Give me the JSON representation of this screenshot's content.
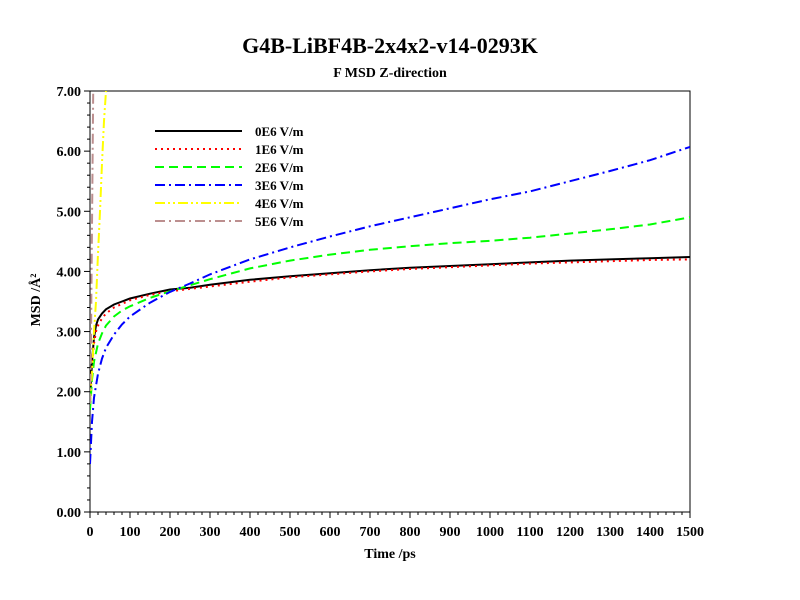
{
  "chart_data": {
    "type": "line",
    "title": "G4B-LiBF4B-2x4x2-v14-0293K",
    "subtitle": "F MSD Z-direction",
    "xlabel": "Time /ps",
    "ylabel": "MSD /Å²",
    "xlim": [
      0,
      1500
    ],
    "ylim": [
      0,
      7
    ],
    "x_ticks": [
      "0",
      "100",
      "200",
      "300",
      "400",
      "500",
      "600",
      "700",
      "800",
      "900",
      "1000",
      "1100",
      "1200",
      "1300",
      "1400",
      "1500"
    ],
    "y_ticks": [
      "0.00",
      "1.00",
      "2.00",
      "3.00",
      "4.00",
      "5.00",
      "6.00",
      "7.00"
    ],
    "grid": false,
    "legend_position": "top-left",
    "series": [
      {
        "name": "0E6 V/m",
        "color": "#000000",
        "dash": "solid",
        "points": [
          [
            0,
            1.8
          ],
          [
            5,
            2.5
          ],
          [
            10,
            2.9
          ],
          [
            15,
            3.1
          ],
          [
            20,
            3.2
          ],
          [
            30,
            3.3
          ],
          [
            40,
            3.37
          ],
          [
            60,
            3.45
          ],
          [
            80,
            3.5
          ],
          [
            100,
            3.55
          ],
          [
            150,
            3.63
          ],
          [
            200,
            3.7
          ],
          [
            250,
            3.73
          ],
          [
            300,
            3.78
          ],
          [
            400,
            3.86
          ],
          [
            500,
            3.92
          ],
          [
            600,
            3.97
          ],
          [
            700,
            4.02
          ],
          [
            800,
            4.06
          ],
          [
            900,
            4.09
          ],
          [
            1000,
            4.12
          ],
          [
            1100,
            4.15
          ],
          [
            1200,
            4.18
          ],
          [
            1300,
            4.2
          ],
          [
            1400,
            4.22
          ],
          [
            1500,
            4.24
          ]
        ]
      },
      {
        "name": "1E6 V/m",
        "color": "#ff0000",
        "dash": "dotted",
        "points": [
          [
            0,
            1.8
          ],
          [
            5,
            2.4
          ],
          [
            10,
            2.8
          ],
          [
            15,
            3.0
          ],
          [
            20,
            3.1
          ],
          [
            30,
            3.22
          ],
          [
            40,
            3.3
          ],
          [
            60,
            3.4
          ],
          [
            80,
            3.46
          ],
          [
            100,
            3.52
          ],
          [
            150,
            3.61
          ],
          [
            200,
            3.67
          ],
          [
            250,
            3.71
          ],
          [
            300,
            3.75
          ],
          [
            400,
            3.83
          ],
          [
            500,
            3.9
          ],
          [
            600,
            3.95
          ],
          [
            700,
            4.0
          ],
          [
            800,
            4.04
          ],
          [
            900,
            4.07
          ],
          [
            1000,
            4.1
          ],
          [
            1100,
            4.13
          ],
          [
            1200,
            4.15
          ],
          [
            1300,
            4.17
          ],
          [
            1400,
            4.19
          ],
          [
            1500,
            4.2
          ]
        ]
      },
      {
        "name": "2E6 V/m",
        "color": "#00ff00",
        "dash": "dashed",
        "points": [
          [
            0,
            1.7
          ],
          [
            5,
            2.2
          ],
          [
            10,
            2.5
          ],
          [
            20,
            2.8
          ],
          [
            30,
            2.97
          ],
          [
            40,
            3.1
          ],
          [
            60,
            3.25
          ],
          [
            80,
            3.35
          ],
          [
            100,
            3.42
          ],
          [
            150,
            3.56
          ],
          [
            200,
            3.67
          ],
          [
            250,
            3.77
          ],
          [
            300,
            3.87
          ],
          [
            400,
            4.05
          ],
          [
            500,
            4.18
          ],
          [
            600,
            4.28
          ],
          [
            700,
            4.36
          ],
          [
            800,
            4.42
          ],
          [
            900,
            4.47
          ],
          [
            1000,
            4.51
          ],
          [
            1100,
            4.56
          ],
          [
            1200,
            4.63
          ],
          [
            1300,
            4.7
          ],
          [
            1400,
            4.78
          ],
          [
            1500,
            4.9
          ]
        ]
      },
      {
        "name": "3E6 V/m",
        "color": "#0000ff",
        "dash": "dashdot",
        "points": [
          [
            0,
            0.8
          ],
          [
            5,
            1.5
          ],
          [
            10,
            1.9
          ],
          [
            20,
            2.3
          ],
          [
            30,
            2.55
          ],
          [
            40,
            2.73
          ],
          [
            60,
            2.95
          ],
          [
            80,
            3.12
          ],
          [
            100,
            3.25
          ],
          [
            150,
            3.48
          ],
          [
            200,
            3.66
          ],
          [
            250,
            3.8
          ],
          [
            300,
            3.95
          ],
          [
            400,
            4.2
          ],
          [
            500,
            4.4
          ],
          [
            600,
            4.58
          ],
          [
            700,
            4.75
          ],
          [
            800,
            4.9
          ],
          [
            900,
            5.05
          ],
          [
            1000,
            5.2
          ],
          [
            1100,
            5.33
          ],
          [
            1200,
            5.5
          ],
          [
            1300,
            5.67
          ],
          [
            1400,
            5.85
          ],
          [
            1500,
            6.07
          ]
        ]
      },
      {
        "name": "4E6 V/m",
        "color": "#ffff00",
        "dash": "dashdotdot",
        "points": [
          [
            0,
            1.8
          ],
          [
            5,
            2.3
          ],
          [
            10,
            3.0
          ],
          [
            15,
            3.5
          ],
          [
            20,
            4.3
          ],
          [
            25,
            5.0
          ],
          [
            30,
            5.8
          ],
          [
            35,
            6.5
          ],
          [
            40,
            7.0
          ]
        ]
      },
      {
        "name": "5E6 V/m",
        "color": "#bc8f8f",
        "dash": "dashdot",
        "points": [
          [
            0,
            1.8
          ],
          [
            2,
            2.5
          ],
          [
            4,
            4.0
          ],
          [
            6,
            5.5
          ],
          [
            8,
            7.0
          ]
        ]
      }
    ]
  }
}
